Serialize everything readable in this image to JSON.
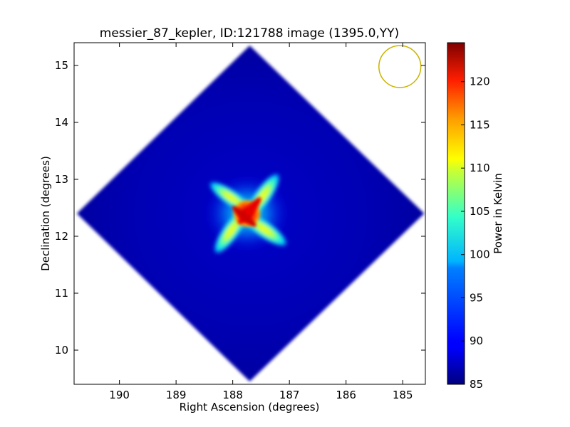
{
  "chart_data": {
    "type": "heatmap",
    "title": "messier_87_kepler, ID:121788 image (1395.0,YY)",
    "xlabel": "Right Ascension (degrees)",
    "ylabel": "Declination (degrees)",
    "xlim": [
      190.8,
      184.6
    ],
    "ylim": [
      9.4,
      15.4
    ],
    "x_ticks": [
      190,
      189,
      188,
      187,
      186,
      185
    ],
    "y_ticks": [
      10,
      11,
      12,
      13,
      14,
      15
    ],
    "x_axis_inverted": true,
    "colorbar": {
      "label": "Power in Kelvin",
      "colormap": "jet",
      "range": [
        85,
        124.5
      ],
      "ticks": [
        85,
        90,
        95,
        100,
        105,
        110,
        115,
        120
      ]
    },
    "footprint": {
      "shape": "diamond",
      "center": [
        187.7,
        12.4
      ],
      "vertices": [
        [
          187.7,
          15.35
        ],
        [
          190.75,
          12.4
        ],
        [
          187.7,
          9.45
        ],
        [
          184.62,
          12.4
        ]
      ]
    },
    "background_level": 87,
    "hotspot": {
      "center": [
        187.75,
        12.4
      ],
      "peak_value": 123,
      "shape": "four-armed pinwheel"
    },
    "beam_circle": {
      "center": [
        185.05,
        14.98
      ],
      "radius_deg": 0.37,
      "color": "#c8b400"
    },
    "grid": false
  }
}
